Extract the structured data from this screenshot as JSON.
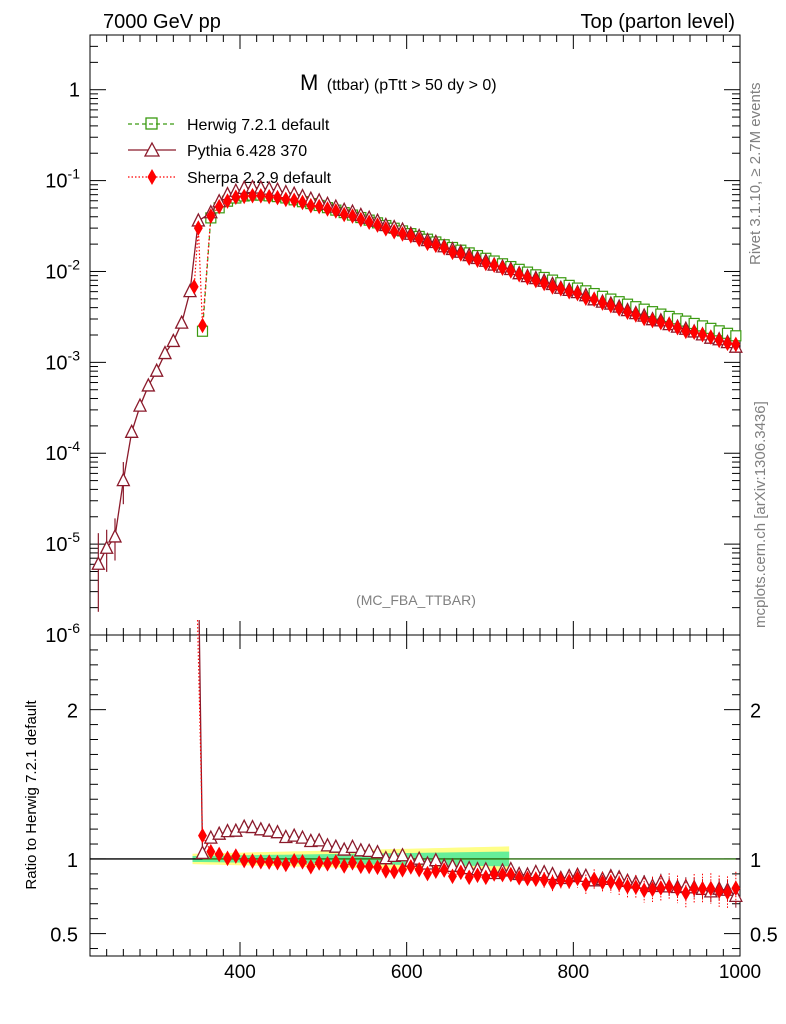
{
  "header": {
    "left": "7000 GeV pp",
    "right": "Top (parton level)"
  },
  "side": {
    "rivet": "Rivet 3.1.10, ≥ 2.7M events",
    "mcplots": "mcplots.cern.ch [arXiv:1306.3436]"
  },
  "chart_data": {
    "type": "line",
    "title_main": "M",
    "title_sub": "(ttbar) (pTtt > 50 dy > 0)",
    "watermark": "(MC_FBA_TTBAR)",
    "xlabel": "",
    "ylabel_ratio": "Ratio to Herwig 7.2.1 default",
    "xlim": [
      220,
      1000
    ],
    "ylim": [
      1e-06,
      4
    ],
    "ratio_ylim": [
      0.35,
      2.5
    ],
    "x_ticks": [
      "400",
      "600",
      "800",
      "1000"
    ],
    "y_ticks": [
      "1",
      "10^-1",
      "10^-2",
      "10^-3",
      "10^-4",
      "10^-5",
      "10^-6"
    ],
    "ratio_ticks": [
      "2",
      "1",
      "0.5"
    ],
    "legend": [
      {
        "name": "Herwig 7.2.1 default",
        "color": "#3a9a10",
        "style": "dashed",
        "marker": "open-square"
      },
      {
        "name": "Pythia 6.428 370",
        "color": "#8b1a2b",
        "style": "solid",
        "marker": "open-triangle"
      },
      {
        "name": "Sherpa 2.2.9 default",
        "color": "#ff0000",
        "style": "dotted",
        "marker": "filled-diamond"
      }
    ],
    "anchors": {
      "x": [
        355,
        362,
        380,
        400,
        420,
        450,
        500,
        550,
        600,
        650,
        700,
        750,
        800,
        850,
        900,
        950,
        1000
      ],
      "herwig": [
        0.0022,
        0.036,
        0.057,
        0.067,
        0.07,
        0.066,
        0.052,
        0.038,
        0.027,
        0.019,
        0.0135,
        0.0095,
        0.0068,
        0.0048,
        0.0035,
        0.0026,
        0.0019
      ],
      "ratio_pythia": [
        1.05,
        1.12,
        1.18,
        1.2,
        1.2,
        1.17,
        1.1,
        1.04,
        1.0,
        0.96,
        0.92,
        0.9,
        0.88,
        0.86,
        0.83,
        0.8,
        0.76
      ],
      "ratio_sherpa": [
        1.18,
        1.08,
        1.02,
        0.99,
        0.98,
        0.97,
        0.96,
        0.95,
        0.93,
        0.91,
        0.89,
        0.87,
        0.85,
        0.83,
        0.8,
        0.78,
        0.79
      ]
    },
    "pythia_threshold": {
      "x": [
        230,
        240,
        250,
        260,
        270,
        280,
        290,
        300,
        310,
        320,
        330,
        340,
        350,
        355
      ],
      "y": [
        6e-06,
        9e-06,
        1.2e-05,
        5e-05,
        0.00017,
        0.00033,
        0.00055,
        0.0008,
        0.00125,
        0.0017,
        0.0027,
        0.006,
        0.036,
        0.04
      ]
    },
    "band_summary": "MC stat. uncertainty band around unity"
  }
}
